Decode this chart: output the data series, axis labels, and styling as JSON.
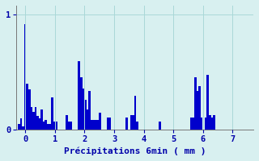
{
  "title": "",
  "xlabel": "Précipitations 6min ( mm )",
  "ylabel": "",
  "xlim": [
    -0.3,
    7.7
  ],
  "ylim": [
    0,
    1.08
  ],
  "yticks": [
    0,
    1
  ],
  "xticks": [
    0,
    1,
    2,
    3,
    4,
    5,
    6,
    7
  ],
  "background_color": "#d8f0f0",
  "bar_color": "#0000cc",
  "bar_width": 0.07,
  "bars": [
    [
      -0.21,
      0.05
    ],
    [
      -0.14,
      0.1
    ],
    [
      -0.07,
      0.03
    ],
    [
      0.0,
      0.92
    ],
    [
      0.07,
      0.4
    ],
    [
      0.14,
      0.35
    ],
    [
      0.21,
      0.2
    ],
    [
      0.28,
      0.16
    ],
    [
      0.35,
      0.2
    ],
    [
      0.42,
      0.12
    ],
    [
      0.49,
      0.1
    ],
    [
      0.56,
      0.18
    ],
    [
      0.63,
      0.07
    ],
    [
      0.7,
      0.09
    ],
    [
      0.77,
      0.05
    ],
    [
      0.84,
      0.05
    ],
    [
      0.91,
      0.28
    ],
    [
      0.98,
      0.07
    ],
    [
      1.05,
      0.07
    ],
    [
      1.4,
      0.13
    ],
    [
      1.47,
      0.07
    ],
    [
      1.54,
      0.07
    ],
    [
      1.82,
      0.6
    ],
    [
      1.89,
      0.46
    ],
    [
      1.96,
      0.36
    ],
    [
      2.03,
      0.26
    ],
    [
      2.1,
      0.18
    ],
    [
      2.17,
      0.34
    ],
    [
      2.24,
      0.09
    ],
    [
      2.31,
      0.09
    ],
    [
      2.38,
      0.09
    ],
    [
      2.45,
      0.09
    ],
    [
      2.52,
      0.15
    ],
    [
      2.8,
      0.11
    ],
    [
      2.87,
      0.11
    ],
    [
      3.43,
      0.11
    ],
    [
      3.57,
      0.13
    ],
    [
      3.64,
      0.13
    ],
    [
      3.71,
      0.3
    ],
    [
      3.78,
      0.07
    ],
    [
      4.55,
      0.07
    ],
    [
      5.6,
      0.11
    ],
    [
      5.67,
      0.11
    ],
    [
      5.74,
      0.46
    ],
    [
      5.81,
      0.34
    ],
    [
      5.88,
      0.38
    ],
    [
      5.95,
      0.11
    ],
    [
      6.09,
      0.11
    ],
    [
      6.16,
      0.48
    ],
    [
      6.23,
      0.13
    ],
    [
      6.3,
      0.11
    ],
    [
      6.37,
      0.13
    ]
  ],
  "grid_color": "#aad8d8",
  "axis_color": "#777777",
  "label_color": "#0000aa",
  "tick_color": "#0000aa",
  "xlabel_fontsize": 8,
  "tick_fontsize": 7.5
}
